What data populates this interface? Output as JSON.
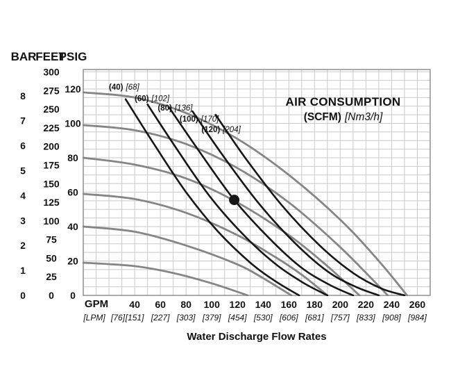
{
  "theme": {
    "background": "#ffffff",
    "grid_color": "#c9c9c9",
    "border_color": "#8f8f8f",
    "water_curve_color": "#858585",
    "air_curve_color": "#161616",
    "text_color": "#111111"
  },
  "chart_data": {
    "type": "line",
    "title": "AIR CONSUMPTION (SCFM) [Nm3/h]",
    "annotation": {
      "line1": "AIR CONSUMPTION",
      "line2_bold": "(SCFM)",
      "line2_italic": "[Nm3/h]"
    },
    "xlabel": "Water Discharge Flow Rates",
    "xlim": [
      0,
      270
    ],
    "ylim": [
      0,
      131.3
    ],
    "grid": {
      "x_step": 10,
      "y_step": 5
    },
    "x_axis": {
      "primary_unit": "GPM",
      "secondary_unit": "[LPM]",
      "gpm_ticks": [
        40,
        60,
        80,
        100,
        120,
        140,
        160,
        180,
        200,
        220,
        240,
        260
      ],
      "lpm_ticks": [
        {
          "gpm": 20,
          "label": "[76]",
          "dx": 13
        },
        {
          "gpm": 40,
          "label": "[151]"
        },
        {
          "gpm": 60,
          "label": "[227]"
        },
        {
          "gpm": 80,
          "label": "[303]"
        },
        {
          "gpm": 100,
          "label": "[379]"
        },
        {
          "gpm": 120,
          "label": "[454]"
        },
        {
          "gpm": 140,
          "label": "[530]"
        },
        {
          "gpm": 160,
          "label": "[606]"
        },
        {
          "gpm": 180,
          "label": "[681]"
        },
        {
          "gpm": 200,
          "label": "[757]"
        },
        {
          "gpm": 220,
          "label": "[833]"
        },
        {
          "gpm": 240,
          "label": "[908]"
        },
        {
          "gpm": 260,
          "label": "[984]"
        }
      ]
    },
    "y_axes": {
      "headers": {
        "bar": "BAR",
        "feet": "FEET",
        "psig": "PSIG"
      },
      "bar_ticks": [
        8,
        7,
        6,
        5,
        4,
        3,
        2,
        1,
        0
      ],
      "feet_ticks": [
        300,
        275,
        250,
        225,
        200,
        175,
        150,
        125,
        100,
        75,
        50,
        25,
        0
      ],
      "psig_ticks": [
        120,
        100,
        80,
        60,
        40,
        20,
        0
      ],
      "bar_to_psi": 14.504,
      "feet_to_psi": 0.4329
    },
    "water_pressure_curves": [
      {
        "psig_at_zero_flow": 120,
        "points": [
          [
            0,
            118
          ],
          [
            40,
            115
          ],
          [
            80,
            106
          ],
          [
            120,
            91
          ],
          [
            160,
            70
          ],
          [
            200,
            44
          ],
          [
            230,
            20
          ],
          [
            252,
            0
          ]
        ]
      },
      {
        "psig_at_zero_flow": 100,
        "points": [
          [
            0,
            99
          ],
          [
            40,
            96
          ],
          [
            80,
            88
          ],
          [
            120,
            74
          ],
          [
            160,
            54
          ],
          [
            200,
            28
          ],
          [
            237,
            0
          ]
        ]
      },
      {
        "psig_at_zero_flow": 80,
        "points": [
          [
            0,
            80
          ],
          [
            40,
            76
          ],
          [
            80,
            68
          ],
          [
            120,
            54
          ],
          [
            160,
            35
          ],
          [
            190,
            17
          ],
          [
            215,
            0
          ]
        ]
      },
      {
        "psig_at_zero_flow": 60,
        "points": [
          [
            0,
            59
          ],
          [
            40,
            56
          ],
          [
            80,
            48
          ],
          [
            120,
            35
          ],
          [
            150,
            22
          ],
          [
            170,
            12
          ],
          [
            190,
            0
          ]
        ]
      },
      {
        "psig_at_zero_flow": 40,
        "points": [
          [
            0,
            40
          ],
          [
            40,
            37
          ],
          [
            80,
            29
          ],
          [
            120,
            18
          ],
          [
            140,
            10
          ],
          [
            162,
            0
          ]
        ]
      },
      {
        "psig_at_zero_flow": 20,
        "points": [
          [
            0,
            19
          ],
          [
            40,
            17
          ],
          [
            70,
            13
          ],
          [
            100,
            7
          ],
          [
            128,
            0
          ]
        ]
      }
    ],
    "air_consumption_curves": [
      {
        "scfm": 40,
        "nm3h": 68,
        "scfm_label": "(40)",
        "nm3h_label": "[68]",
        "label_at": [
          20,
          119.5
        ],
        "points": [
          [
            33,
            114
          ],
          [
            55,
            88
          ],
          [
            80,
            60
          ],
          [
            105,
            37
          ],
          [
            130,
            19
          ],
          [
            150,
            8
          ],
          [
            168,
            0
          ]
        ]
      },
      {
        "scfm": 60,
        "nm3h": 102,
        "scfm_label": "(60)",
        "nm3h_label": "[102]",
        "label_at": [
          40,
          113
        ],
        "points": [
          [
            50,
            111
          ],
          [
            72,
            86
          ],
          [
            98,
            58
          ],
          [
            125,
            35
          ],
          [
            150,
            18
          ],
          [
            172,
            7
          ],
          [
            190,
            0
          ]
        ]
      },
      {
        "scfm": 80,
        "nm3h": 136,
        "scfm_label": "(80)",
        "nm3h_label": "[136]",
        "label_at": [
          58,
          107.5
        ],
        "points": [
          [
            67,
            109
          ],
          [
            90,
            84
          ],
          [
            117,
            56
          ],
          [
            145,
            33
          ],
          [
            170,
            16
          ],
          [
            192,
            6
          ],
          [
            210,
            0
          ]
        ]
      },
      {
        "scfm": 100,
        "nm3h": 170,
        "scfm_label": "(100)",
        "nm3h_label": "[170]",
        "label_at": [
          75,
          101
        ],
        "points": [
          [
            85,
            107
          ],
          [
            108,
            82
          ],
          [
            136,
            54
          ],
          [
            164,
            31
          ],
          [
            190,
            14
          ],
          [
            212,
            5
          ],
          [
            230,
            0
          ]
        ]
      },
      {
        "scfm": 120,
        "nm3h": 204,
        "scfm_label": "(120)",
        "nm3h_label": "[204]",
        "label_at": [
          92,
          95
        ],
        "points": [
          [
            103,
            105
          ],
          [
            126,
            80
          ],
          [
            155,
            52
          ],
          [
            184,
            29
          ],
          [
            210,
            13
          ],
          [
            232,
            4
          ],
          [
            250,
            0
          ]
        ]
      }
    ],
    "operating_point": {
      "gpm": 117.5,
      "psig": 55.5
    }
  }
}
